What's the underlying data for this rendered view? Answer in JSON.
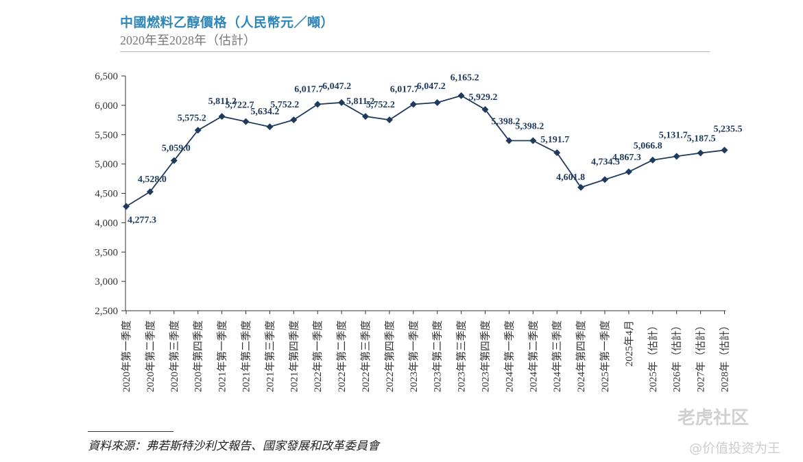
{
  "header": {
    "title": "中國燃料乙醇價格（人民幣元／噸）",
    "subtitle": "2020年至2028年（估計）"
  },
  "footer": {
    "source": "資料來源：弗若斯特沙利文報告、國家發展和改革委員會"
  },
  "watermark": {
    "brand": "老虎社区",
    "handle": "@价值投资为王"
  },
  "colors": {
    "series": "#1f3a5c",
    "title": "#2e86b8"
  },
  "chart_data": {
    "type": "line",
    "title": "中國燃料乙醇價格（人民幣元／噸）",
    "xlabel": "",
    "ylabel": "",
    "ylim": [
      2500,
      6500
    ],
    "yticks": [
      "2,500",
      "3,000",
      "3,500",
      "4,000",
      "4,500",
      "5,000",
      "5,500",
      "6,000",
      "6,500"
    ],
    "grid": false,
    "categories": [
      "2020年第一季度",
      "2020年第二季度",
      "2020年第三季度",
      "2020年第四季度",
      "2021年第一季度",
      "2021年第二季度",
      "2021年第三季度",
      "2021年第四季度",
      "2022年第一季度",
      "2022年第二季度",
      "2022年第三季度",
      "2022年第四季度",
      "2023年第一季度",
      "2023年第二季度",
      "2023年第三季度",
      "2023年第四季度",
      "2024年第一季度",
      "2024年第二季度",
      "2024年第三季度",
      "2024年第四季度",
      "2025年第一季度",
      "2025年4月",
      "2025年（估計）",
      "2026年（估計）",
      "2027年（估計）",
      "2028年（估計）"
    ],
    "values": [
      4277.3,
      4528.0,
      5059.0,
      5575.2,
      5811.2,
      5722.7,
      5634.2,
      5752.2,
      6017.7,
      6047.2,
      5811.2,
      5752.2,
      6017.7,
      6047.2,
      6165.2,
      5929.2,
      5398.2,
      5398.2,
      5191.7,
      4601.8,
      4734.5,
      4867.3,
      5066.8,
      5131.7,
      5187.5,
      5235.5
    ],
    "labels": [
      "4,277.3",
      "4,528.0",
      "5,059.0",
      "5,575.2",
      "5,811.2",
      "5,722.7",
      "5,634.2",
      "5,752.2",
      "6,017.7",
      "6,047.2",
      "5,811.2",
      "5,752.2",
      "6,017.7",
      "6,047.2",
      "6,165.2",
      "5,929.2",
      "5,398.2",
      "5,398.2",
      "5,191.7",
      "4,601.8",
      "4,734.5",
      "4,867.3",
      "5,066.8",
      "5,131.7",
      "5,187.5",
      "5,235.5"
    ]
  }
}
